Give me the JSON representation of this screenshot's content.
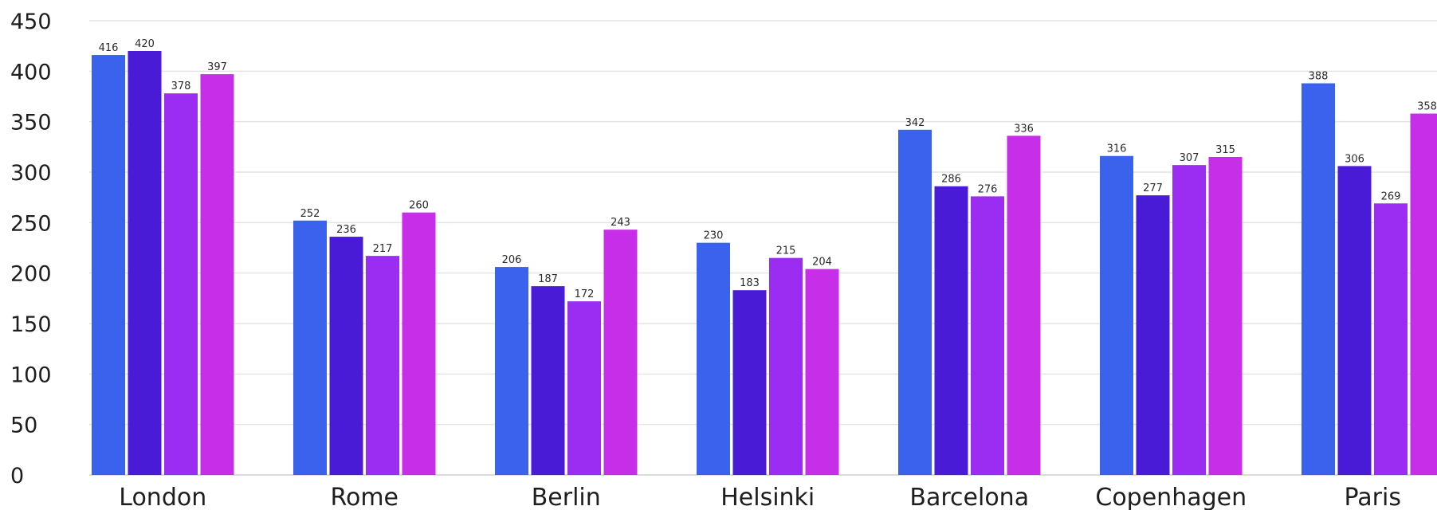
{
  "chart_data": {
    "type": "bar",
    "title": "",
    "xlabel": "",
    "ylabel": "",
    "ylim": [
      0,
      450
    ],
    "yticks": [
      0,
      50,
      100,
      150,
      200,
      250,
      300,
      350,
      400,
      450
    ],
    "grid": true,
    "legend": "none",
    "categories": [
      "London",
      "Rome",
      "Berlin",
      "Helsinki",
      "Barcelona",
      "Copenhagen",
      "Paris"
    ],
    "series": [
      {
        "color": "#3a62ec",
        "values": [
          416,
          252,
          206,
          230,
          342,
          316,
          388
        ]
      },
      {
        "color": "#4a1bd6",
        "values": [
          420,
          236,
          187,
          183,
          286,
          277,
          306
        ]
      },
      {
        "color": "#9b2df2",
        "values": [
          378,
          217,
          172,
          215,
          276,
          307,
          269
        ]
      },
      {
        "color": "#c72ee8",
        "values": [
          397,
          260,
          243,
          204,
          336,
          315,
          358
        ]
      }
    ]
  }
}
